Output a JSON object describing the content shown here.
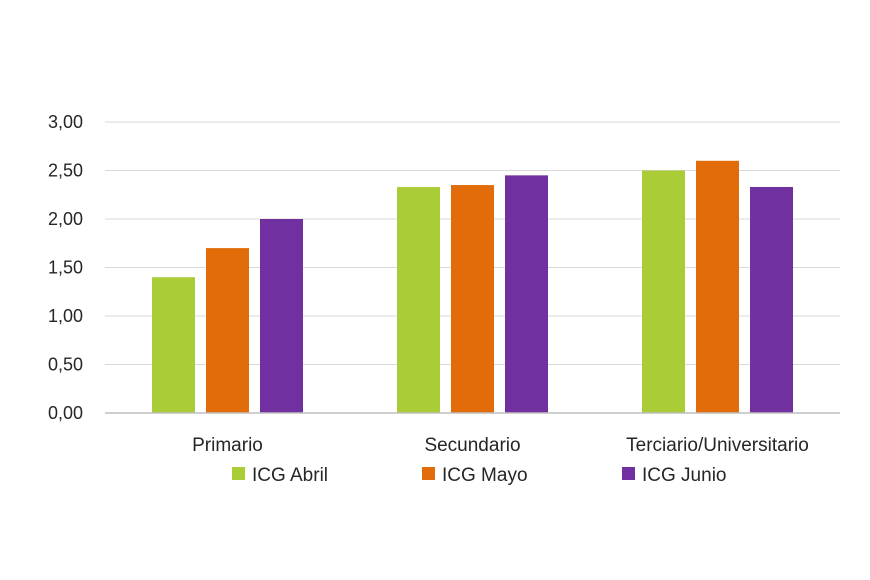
{
  "chart_data": {
    "type": "bar",
    "categories": [
      "Primario",
      "Secundario",
      "Terciario/Universitario"
    ],
    "series": [
      {
        "name": "ICG Abril",
        "color": "#a9cc37",
        "values": [
          1.4,
          2.33,
          2.5
        ]
      },
      {
        "name": "ICG Mayo",
        "color": "#e36c0a",
        "values": [
          1.7,
          2.35,
          2.6
        ]
      },
      {
        "name": "ICG Junio",
        "color": "#7030a0",
        "values": [
          2.0,
          2.45,
          2.33
        ]
      }
    ],
    "yticks": [
      "0,00",
      "0,50",
      "1,00",
      "1,50",
      "2,00",
      "2,50",
      "3,00"
    ],
    "ylim": [
      0,
      3
    ],
    "grid": true,
    "legend_position": "bottom"
  }
}
